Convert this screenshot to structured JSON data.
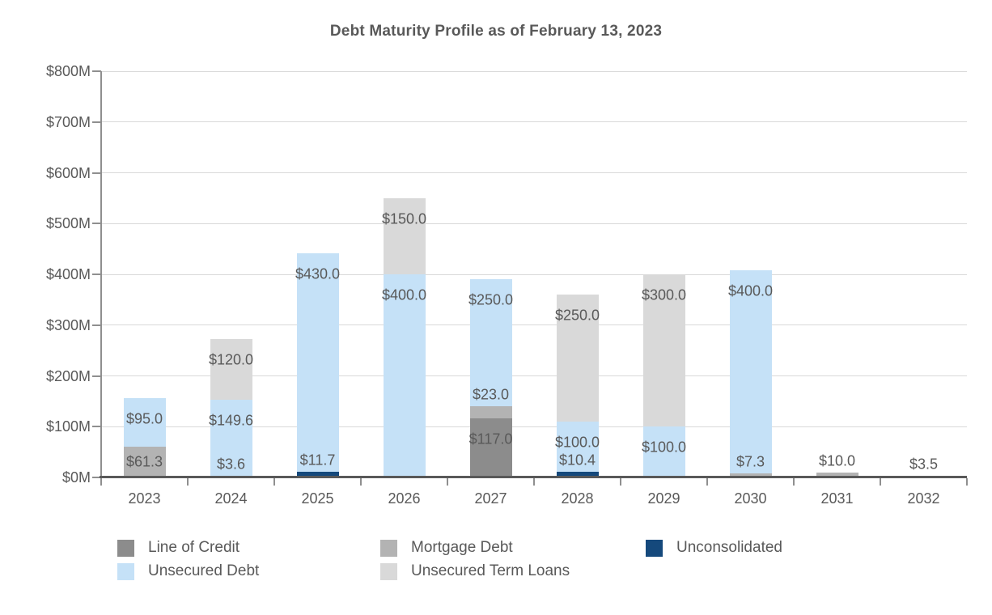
{
  "title": "Debt Maturity Profile as of February 13, 2023",
  "chart_data": {
    "type": "bar",
    "stacked": true,
    "title": "Debt Maturity Profile as of February 13, 2023",
    "categories": [
      "2023",
      "2024",
      "2025",
      "2026",
      "2027",
      "2028",
      "2029",
      "2030",
      "2031",
      "2032"
    ],
    "series": [
      {
        "name": "Line of Credit",
        "color": "#8c8c8c",
        "values": [
          0,
          0,
          0,
          0,
          117.0,
          0,
          0,
          0,
          0,
          0
        ]
      },
      {
        "name": "Mortgage Debt",
        "color": "#b3b3b3",
        "values": [
          61.3,
          3.6,
          0,
          0,
          23.0,
          0,
          0,
          7.3,
          10.0,
          3.5
        ]
      },
      {
        "name": "Unconsolidated",
        "color": "#15497c",
        "values": [
          0,
          0,
          11.7,
          0,
          0,
          10.4,
          0,
          0,
          0,
          0
        ]
      },
      {
        "name": "Unsecured Debt",
        "color": "#c5e1f7",
        "values": [
          95.0,
          149.6,
          430.0,
          400.0,
          250.0,
          100.0,
          100.0,
          400.0,
          0,
          0
        ]
      },
      {
        "name": "Unsecured Term Loans",
        "color": "#d9d9d9",
        "values": [
          0,
          120.0,
          0,
          150.0,
          0,
          250.0,
          300.0,
          0,
          0,
          0
        ]
      }
    ],
    "totals": [
      156.3,
      273.2,
      441.7,
      550.0,
      390.0,
      360.4,
      400.0,
      407.3,
      10.0,
      3.5
    ],
    "y_axis": {
      "min": 0,
      "max": 800,
      "step": 100,
      "tick_labels": [
        "$0M",
        "$100M",
        "$200M",
        "$300M",
        "$400M",
        "$500M",
        "$600M",
        "$700M",
        "$800M"
      ]
    },
    "data_label_prefix": "$",
    "data_label_decimals": 1,
    "grid": true,
    "legend_position": "bottom",
    "legend_order": [
      "Line of Credit",
      "Mortgage Debt",
      "Unconsolidated",
      "Unsecured Debt",
      "Unsecured Term Loans"
    ],
    "colors": {
      "text": "#595959",
      "gridline": "#d9d9d9",
      "x_axis": "#595959",
      "y_axis": "#8f8f8f",
      "background": "#ffffff"
    }
  }
}
